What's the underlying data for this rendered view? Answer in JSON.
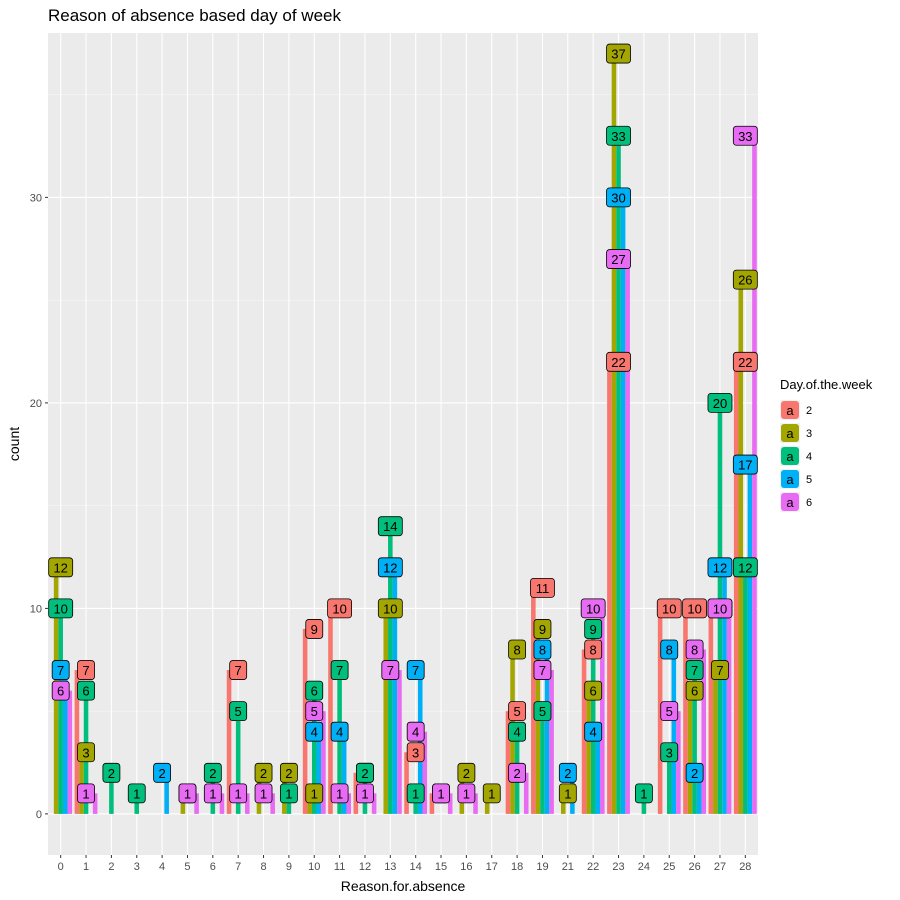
{
  "chart_data": {
    "type": "bar",
    "title": "Reason of absence based day of week",
    "xlabel": "Reason.for.absence",
    "ylabel": "count",
    "ylim": [
      -2,
      38
    ],
    "yticks": [
      0,
      10,
      20,
      30
    ],
    "grid": true,
    "legend": {
      "title": "Day.of.the.week",
      "placement": "right",
      "key_glyph": "a"
    },
    "categories": [
      "0",
      "1",
      "2",
      "3",
      "4",
      "5",
      "6",
      "7",
      "8",
      "9",
      "10",
      "11",
      "12",
      "13",
      "14",
      "15",
      "16",
      "17",
      "18",
      "19",
      "21",
      "22",
      "23",
      "24",
      "25",
      "26",
      "27",
      "28"
    ],
    "series": [
      {
        "name": "2",
        "color": "#F8766D",
        "values": [
          0,
          7,
          0,
          0,
          0,
          0,
          0,
          7,
          0,
          0,
          9,
          10,
          2,
          0,
          3,
          1,
          0,
          0,
          5,
          11,
          0,
          8,
          22,
          0,
          10,
          10,
          10,
          22
        ]
      },
      {
        "name": "3",
        "color": "#A3A500",
        "values": [
          12,
          3,
          0,
          0,
          0,
          1,
          0,
          0,
          2,
          2,
          1,
          0,
          0,
          10,
          0,
          0,
          2,
          1,
          8,
          9,
          1,
          6,
          37,
          0,
          0,
          6,
          7,
          26
        ]
      },
      {
        "name": "4",
        "color": "#00BF7D",
        "values": [
          10,
          6,
          2,
          1,
          0,
          0,
          2,
          5,
          0,
          1,
          6,
          7,
          2,
          14,
          1,
          0,
          0,
          0,
          4,
          5,
          0,
          9,
          33,
          1,
          3,
          7,
          20,
          12
        ]
      },
      {
        "name": "5",
        "color": "#00B0F6",
        "values": [
          7,
          0,
          0,
          0,
          2,
          0,
          0,
          0,
          0,
          0,
          4,
          4,
          0,
          12,
          7,
          0,
          0,
          0,
          0,
          8,
          2,
          4,
          30,
          0,
          8,
          2,
          12,
          17
        ]
      },
      {
        "name": "6",
        "color": "#E76BF3",
        "values": [
          6,
          1,
          0,
          0,
          0,
          1,
          1,
          1,
          1,
          0,
          5,
          1,
          1,
          7,
          4,
          1,
          1,
          0,
          2,
          7,
          0,
          10,
          27,
          0,
          5,
          8,
          10,
          33
        ]
      }
    ]
  }
}
